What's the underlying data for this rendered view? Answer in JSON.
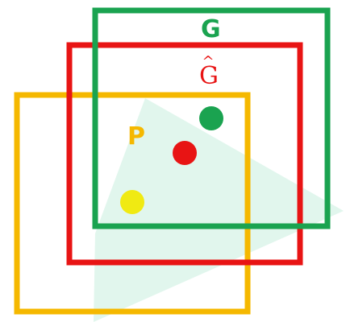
{
  "labels": {
    "g": "G",
    "ghat_base": "G",
    "ghat_accent": "^",
    "p": "P"
  },
  "colors": {
    "green": "#1aa350",
    "red": "#e81414",
    "yellow": "#f5b800",
    "point_yellow": "#f0ea12",
    "triangle": "#dff5ec"
  }
}
